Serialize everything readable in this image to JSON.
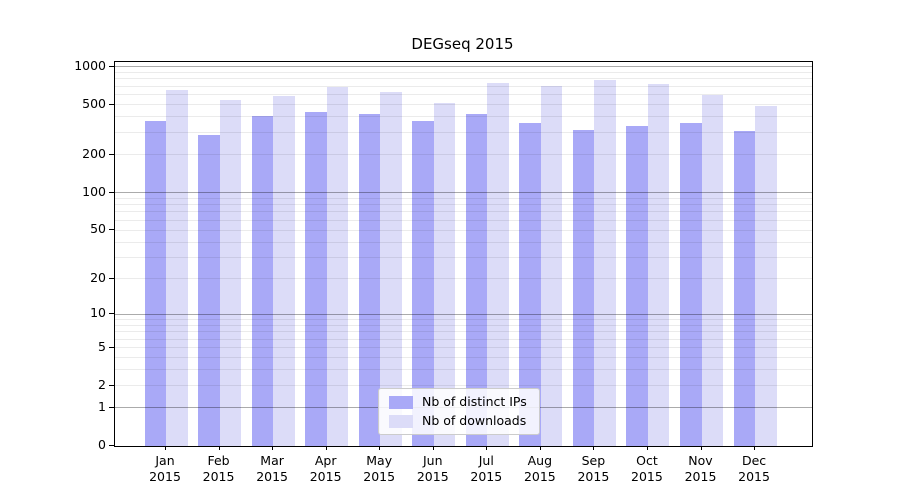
{
  "chart_data": {
    "type": "bar",
    "title": "DEGseq 2015",
    "y_scale": "log10(1+x)",
    "categories": [
      "Jan",
      "Feb",
      "Mar",
      "Apr",
      "May",
      "Jun",
      "Jul",
      "Aug",
      "Sep",
      "Oct",
      "Nov",
      "Dec"
    ],
    "year_label": "2015",
    "series": [
      {
        "name": "Nb of distinct IPs",
        "color": "#a9a9f7",
        "values": [
          370,
          290,
          410,
          440,
          425,
          370,
          425,
          360,
          315,
          340,
          355,
          310
        ]
      },
      {
        "name": "Nb of downloads",
        "color": "#dcdcf8",
        "values": [
          650,
          550,
          585,
          690,
          625,
          520,
          745,
          700,
          790,
          730,
          595,
          490
        ]
      }
    ],
    "y_ticks": [
      0,
      1,
      2,
      5,
      10,
      20,
      50,
      100,
      200,
      500,
      1000
    ],
    "ylim": [
      0,
      1090
    ],
    "grid": {
      "minor_color": "#ebebeb",
      "major_color": "#ababab",
      "minor_values": [
        2,
        3,
        4,
        5,
        6,
        7,
        8,
        9,
        20,
        30,
        40,
        50,
        60,
        70,
        80,
        90,
        200,
        300,
        400,
        500,
        600,
        700,
        800,
        900
      ],
      "major_values": [
        1,
        10,
        100,
        1000
      ]
    },
    "legend_position": "bottom-center",
    "axis_color": "#000000"
  }
}
